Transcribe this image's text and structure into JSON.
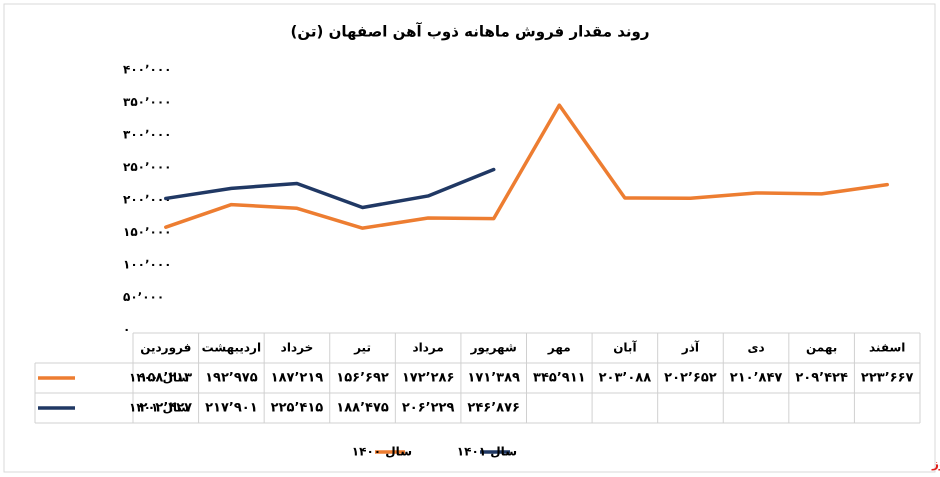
{
  "chart_data": {
    "type": "line",
    "title": "روند مقدار فروش ماهانه ذوب آهن اصفهان (تن)",
    "categories": [
      "فروردین",
      "اردیبهشت",
      "خرداد",
      "تیر",
      "مرداد",
      "شهریور",
      "مهر",
      "آبان",
      "آذر",
      "دی",
      "بهمن",
      "اسفند"
    ],
    "series": [
      {
        "name": "سال ۱۴۰۰",
        "color": "#ed7d31",
        "values": [
          158213,
          192975,
          187219,
          156692,
          172286,
          171389,
          345911,
          203088,
          202652,
          210847,
          209424,
          223667
        ],
        "value_labels": [
          "۱۵۸٬۲۱۳",
          "۱۹۲٬۹۷۵",
          "۱۸۷٬۲۱۹",
          "۱۵۶٬۶۹۲",
          "۱۷۲٬۲۸۶",
          "۱۷۱٬۳۸۹",
          "۳۴۵٬۹۱۱",
          "۲۰۳٬۰۸۸",
          "۲۰۲٬۶۵۲",
          "۲۱۰٬۸۴۷",
          "۲۰۹٬۴۲۴",
          "۲۲۳٬۶۶۷"
        ]
      },
      {
        "name": "سال ۱۴۰۱",
        "color": "#203864",
        "values": [
          202427,
          217901,
          225415,
          188475,
          206229,
          246876,
          null,
          null,
          null,
          null,
          null,
          null
        ],
        "value_labels": [
          "۲۰۲٬۴۲۷",
          "۲۱۷٬۹۰۱",
          "۲۲۵٬۴۱۵",
          "۱۸۸٬۴۷۵",
          "۲۰۶٬۲۲۹",
          "۲۴۶٬۸۷۶",
          null,
          null,
          null,
          null,
          null,
          null
        ]
      }
    ],
    "ylim": [
      0,
      400000
    ],
    "yticks": [
      {
        "value": 0,
        "label": "۰"
      },
      {
        "value": 50000,
        "label": "۵۰٬۰۰۰"
      },
      {
        "value": 100000,
        "label": "۱۰۰٬۰۰۰"
      },
      {
        "value": 150000,
        "label": "۱۵۰٬۰۰۰"
      },
      {
        "value": 200000,
        "label": "۲۰۰٬۰۰۰"
      },
      {
        "value": 250000,
        "label": "۲۵۰٬۰۰۰"
      },
      {
        "value": 300000,
        "label": "۳۰۰٬۰۰۰"
      },
      {
        "value": 350000,
        "label": "۳۵۰٬۰۰۰"
      },
      {
        "value": 400000,
        "label": "۴۰۰٬۰۰۰"
      }
    ],
    "grid": false,
    "legend": "bottom",
    "watermark": "بورس نیوز"
  }
}
